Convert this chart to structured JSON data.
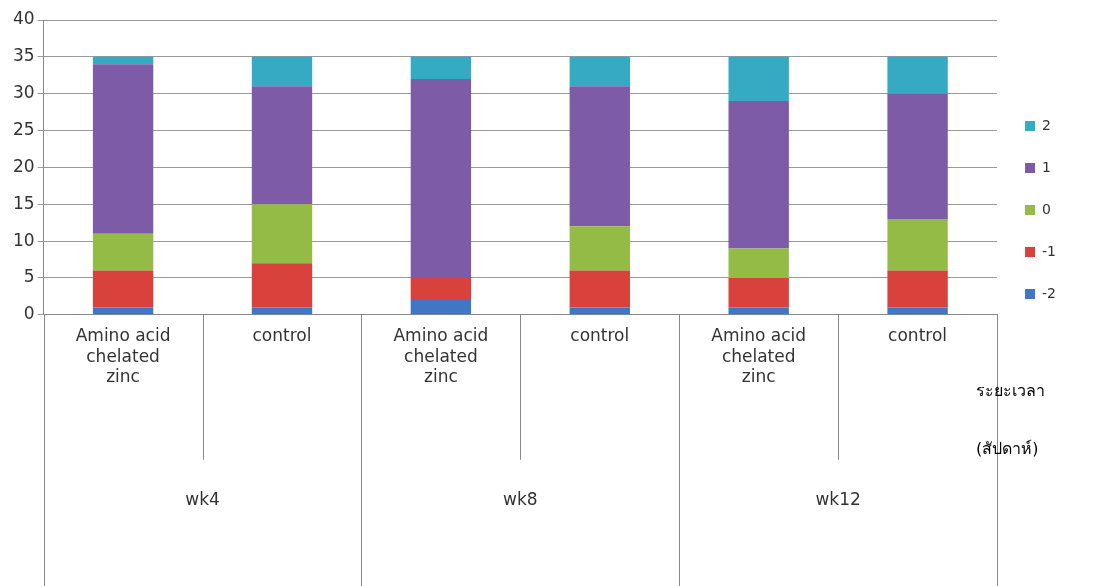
{
  "chart_data": {
    "type": "bar",
    "stacked": true,
    "categories": [
      "Amino acid chelated zinc",
      "control",
      "Amino acid chelated zinc",
      "control",
      "Amino acid chelated zinc",
      "control"
    ],
    "series": [
      {
        "name": "-2",
        "color": "#3f77c4",
        "values": [
          1,
          1,
          2,
          1,
          1,
          1
        ]
      },
      {
        "name": "-1",
        "color": "#d9413c",
        "values": [
          5,
          6,
          3,
          5,
          4,
          5
        ]
      },
      {
        "name": "0",
        "color": "#93bb45",
        "values": [
          5,
          8,
          0,
          6,
          4,
          7
        ]
      },
      {
        "name": "1",
        "color": "#7d5ba6",
        "values": [
          23,
          16,
          27,
          19,
          20,
          17
        ]
      },
      {
        "name": "2",
        "color": "#36a9c3",
        "values": [
          1,
          4,
          3,
          4,
          6,
          5
        ]
      }
    ],
    "ylim": [
      0,
      40
    ],
    "yticks": [
      0,
      5,
      10,
      15,
      20,
      25,
      30,
      35,
      40
    ],
    "grid": "y",
    "legend": "right",
    "xlabel": "ระยะเวลา (สัปดาห์)",
    "annotations": [
      "wk4",
      "wk8",
      "wk12"
    ]
  }
}
